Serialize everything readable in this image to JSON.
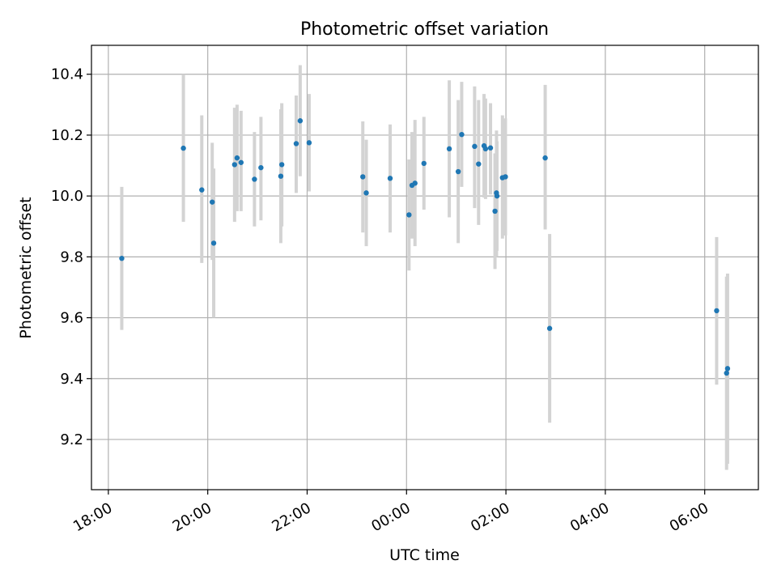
{
  "chart_data": {
    "type": "scatter",
    "title": "Photometric offset variation",
    "xlabel": "UTC time",
    "ylabel": "Photometric offset",
    "x_unit": "hours (UTC clock time; values beyond 24 are after midnight of the next day)",
    "xlim": [
      17.66,
      31.08
    ],
    "ylim": [
      9.035,
      10.495
    ],
    "x_ticks": [
      {
        "value": 18,
        "label": "18:00"
      },
      {
        "value": 20,
        "label": "20:00"
      },
      {
        "value": 22,
        "label": "22:00"
      },
      {
        "value": 24,
        "label": "00:00"
      },
      {
        "value": 26,
        "label": "02:00"
      },
      {
        "value": 28,
        "label": "04:00"
      },
      {
        "value": 30,
        "label": "06:00"
      }
    ],
    "y_ticks": [
      {
        "value": 9.2,
        "label": "9.2"
      },
      {
        "value": 9.4,
        "label": "9.4"
      },
      {
        "value": 9.6,
        "label": "9.6"
      },
      {
        "value": 9.8,
        "label": "9.8"
      },
      {
        "value": 10.0,
        "label": "10.0"
      },
      {
        "value": 10.2,
        "label": "10.2"
      },
      {
        "value": 10.4,
        "label": "10.4"
      }
    ],
    "grid": true,
    "colors": {
      "point": "#1f77b4",
      "errorbar": "#d3d3d3",
      "grid": "#b0b0b0"
    },
    "points": [
      {
        "x": 18.27,
        "y": 9.795,
        "lo": 9.56,
        "hi": 10.03
      },
      {
        "x": 19.51,
        "y": 10.157,
        "lo": 9.915,
        "hi": 10.4
      },
      {
        "x": 19.88,
        "y": 10.02,
        "lo": 9.78,
        "hi": 10.265
      },
      {
        "x": 20.09,
        "y": 9.98,
        "lo": 9.79,
        "hi": 10.175
      },
      {
        "x": 20.12,
        "y": 9.845,
        "lo": 9.6,
        "hi": 10.09
      },
      {
        "x": 20.54,
        "y": 10.103,
        "lo": 9.915,
        "hi": 10.29
      },
      {
        "x": 20.59,
        "y": 10.125,
        "lo": 9.95,
        "hi": 10.3
      },
      {
        "x": 20.67,
        "y": 10.11,
        "lo": 9.95,
        "hi": 10.28
      },
      {
        "x": 20.94,
        "y": 10.055,
        "lo": 9.9,
        "hi": 10.21
      },
      {
        "x": 21.07,
        "y": 10.093,
        "lo": 9.92,
        "hi": 10.26
      },
      {
        "x": 21.47,
        "y": 10.065,
        "lo": 9.845,
        "hi": 10.285
      },
      {
        "x": 21.49,
        "y": 10.103,
        "lo": 9.9,
        "hi": 10.305
      },
      {
        "x": 21.78,
        "y": 10.172,
        "lo": 10.01,
        "hi": 10.33
      },
      {
        "x": 21.86,
        "y": 10.247,
        "lo": 10.065,
        "hi": 10.43
      },
      {
        "x": 22.04,
        "y": 10.175,
        "lo": 10.015,
        "hi": 10.335
      },
      {
        "x": 23.12,
        "y": 10.063,
        "lo": 9.88,
        "hi": 10.245
      },
      {
        "x": 23.19,
        "y": 10.01,
        "lo": 9.835,
        "hi": 10.185
      },
      {
        "x": 23.67,
        "y": 10.058,
        "lo": 9.88,
        "hi": 10.235
      },
      {
        "x": 24.05,
        "y": 9.938,
        "lo": 9.755,
        "hi": 10.12
      },
      {
        "x": 24.11,
        "y": 10.035,
        "lo": 9.86,
        "hi": 10.21
      },
      {
        "x": 24.17,
        "y": 10.042,
        "lo": 9.835,
        "hi": 10.25
      },
      {
        "x": 24.35,
        "y": 10.107,
        "lo": 9.955,
        "hi": 10.26
      },
      {
        "x": 24.86,
        "y": 10.155,
        "lo": 9.93,
        "hi": 10.38
      },
      {
        "x": 25.04,
        "y": 10.08,
        "lo": 9.845,
        "hi": 10.315
      },
      {
        "x": 25.11,
        "y": 10.202,
        "lo": 10.03,
        "hi": 10.375
      },
      {
        "x": 25.37,
        "y": 10.163,
        "lo": 9.96,
        "hi": 10.36
      },
      {
        "x": 25.45,
        "y": 10.105,
        "lo": 9.905,
        "hi": 10.315
      },
      {
        "x": 25.56,
        "y": 10.165,
        "lo": 9.995,
        "hi": 10.335
      },
      {
        "x": 25.59,
        "y": 10.155,
        "lo": 9.99,
        "hi": 10.32
      },
      {
        "x": 25.69,
        "y": 10.158,
        "lo": 10.005,
        "hi": 10.305
      },
      {
        "x": 25.78,
        "y": 9.95,
        "lo": 9.76,
        "hi": 10.14
      },
      {
        "x": 25.81,
        "y": 10.01,
        "lo": 9.8,
        "hi": 10.215
      },
      {
        "x": 25.82,
        "y": 10.0,
        "lo": 9.82,
        "hi": 10.18
      },
      {
        "x": 25.93,
        "y": 10.06,
        "lo": 9.86,
        "hi": 10.265
      },
      {
        "x": 25.99,
        "y": 10.063,
        "lo": 9.87,
        "hi": 10.255
      },
      {
        "x": 26.79,
        "y": 10.125,
        "lo": 9.89,
        "hi": 10.365
      },
      {
        "x": 26.88,
        "y": 9.565,
        "lo": 9.255,
        "hi": 9.875
      },
      {
        "x": 30.24,
        "y": 9.623,
        "lo": 9.38,
        "hi": 9.865
      },
      {
        "x": 30.44,
        "y": 9.418,
        "lo": 9.1,
        "hi": 9.735
      },
      {
        "x": 30.46,
        "y": 9.433,
        "lo": 9.12,
        "hi": 9.745
      }
    ]
  }
}
